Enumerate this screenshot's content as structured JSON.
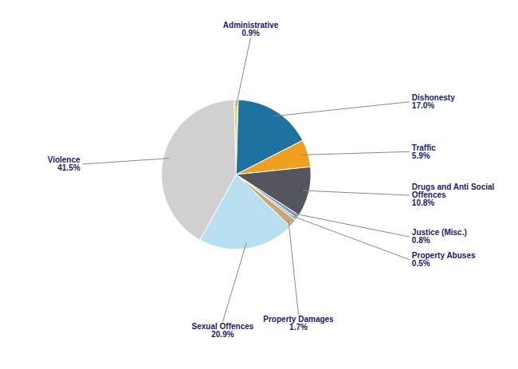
{
  "chart_data": {
    "type": "pie",
    "categories": [
      "Administrative",
      "Dishonesty",
      "Traffic",
      "Drugs and Anti Social\nOffences",
      "Justice (Misc.)",
      "Property Abuses",
      "Property Damages",
      "Sexual Offences",
      "Violence"
    ],
    "values": [
      0.9,
      17.0,
      5.9,
      10.8,
      0.8,
      0.5,
      1.7,
      20.9,
      41.5
    ],
    "value_labels": [
      "0.9%",
      "17.0%",
      "5.9%",
      "10.8%",
      "0.8%",
      "0.5%",
      "1.7%",
      "20.9%",
      "41.5%"
    ],
    "colors": [
      "#e8d87c",
      "#1e72a0",
      "#f0a020",
      "#555560",
      "#7a9aaa",
      "#9fbccc",
      "#c8a870",
      "#b8dff0",
      "#d0d0d0"
    ],
    "data_labels": true
  }
}
